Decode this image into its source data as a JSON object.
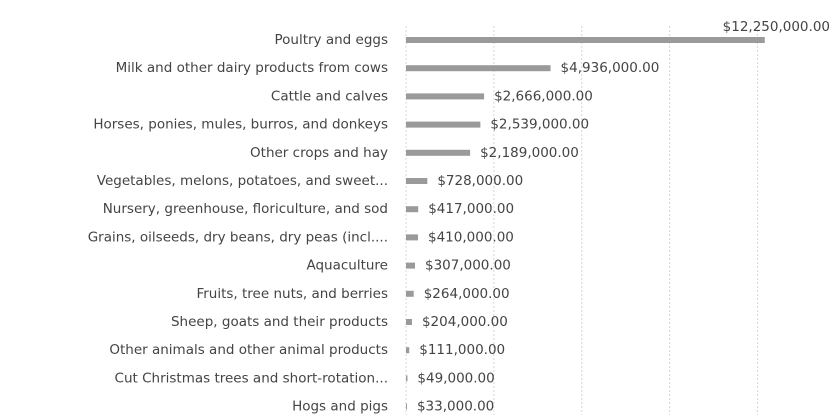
{
  "chart_data": {
    "type": "barh",
    "categories": [
      "Poultry and eggs",
      "Milk and other dairy products from cows",
      "Cattle and calves",
      "Horses, ponies, mules, burros, and donkeys",
      "Other crops and hay",
      "Vegetables, melons, potatoes, and sweet...",
      "Nursery, greenhouse, floriculture, and sod",
      "Grains, oilseeds, dry beans, dry peas (incl....",
      "Aquaculture",
      "Fruits, tree nuts, and berries",
      "Sheep, goats and their products",
      "Other animals and other animal products",
      "Cut Christmas trees and short-rotation...",
      "Hogs and pigs"
    ],
    "values": [
      12250000,
      4936000,
      2666000,
      2539000,
      2189000,
      728000,
      417000,
      410000,
      307000,
      264000,
      204000,
      111000,
      49000,
      33000
    ],
    "value_labels": [
      "$12,250,000.00",
      "$4,936,000.00",
      "$2,666,000.00",
      "$2,539,000.00",
      "$2,189,000.00",
      "$728,000.00",
      "$417,000.00",
      "$410,000.00",
      "$307,000.00",
      "$264,000.00",
      "$204,000.00",
      "$111,000.00",
      "$49,000.00",
      "$33,000.00"
    ],
    "color": "#9a9a9a",
    "xlim": [
      0,
      14000000
    ],
    "xticks": [
      0,
      3000000,
      6000000,
      9000000,
      12000000
    ],
    "grid": true
  }
}
